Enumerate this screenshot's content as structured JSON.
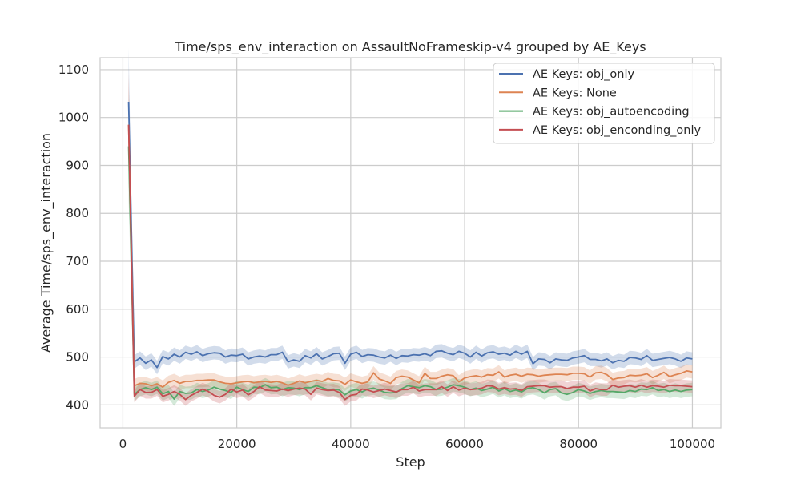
{
  "chart_data": {
    "type": "line",
    "title": "Time/sps_env_interaction on AssaultNoFrameskip-v4 grouped by AE_Keys",
    "xlabel": "Step",
    "ylabel": "Average Time/sps_env_interaction",
    "xlim": [
      -4000,
      105000
    ],
    "ylim": [
      352,
      1125
    ],
    "xticks": [
      0,
      20000,
      40000,
      60000,
      80000,
      100000
    ],
    "yticks": [
      400,
      500,
      600,
      700,
      800,
      900,
      1000,
      1100
    ],
    "grid": true,
    "legend_position": "top-right",
    "background": "#ffffff",
    "x": [
      1000,
      2000,
      3000,
      4000,
      5000,
      6000,
      7000,
      8000,
      9000,
      10000,
      11000,
      12000,
      13000,
      14000,
      15000,
      16000,
      17000,
      18000,
      19000,
      20000,
      21000,
      22000,
      23000,
      24000,
      25000,
      26000,
      27000,
      28000,
      29000,
      30000,
      31000,
      32000,
      33000,
      34000,
      35000,
      36000,
      37000,
      38000,
      39000,
      40000,
      41000,
      42000,
      43000,
      44000,
      45000,
      46000,
      47000,
      48000,
      49000,
      50000,
      51000,
      52000,
      53000,
      54000,
      55000,
      56000,
      57000,
      58000,
      59000,
      60000,
      61000,
      62000,
      63000,
      64000,
      65000,
      66000,
      67000,
      68000,
      69000,
      70000,
      71000,
      72000,
      73000,
      74000,
      75000,
      76000,
      77000,
      78000,
      79000,
      80000,
      81000,
      82000,
      83000,
      84000,
      85000,
      86000,
      87000,
      88000,
      89000,
      90000,
      91000,
      92000,
      93000,
      94000,
      95000,
      96000,
      97000,
      98000,
      99000,
      100000
    ],
    "series": [
      {
        "name": "AE Keys: obj_only",
        "color": "#4c72b0",
        "band": 14,
        "values": [
          1033,
          490,
          498,
          487,
          494,
          478,
          501,
          496,
          506,
          500,
          510,
          506,
          511,
          503,
          507,
          509,
          508,
          500,
          504,
          503,
          506,
          496,
          500,
          502,
          500,
          505,
          505,
          510,
          490,
          494,
          491,
          503,
          498,
          507,
          496,
          501,
          507,
          508,
          487,
          506,
          510,
          501,
          505,
          504,
          500,
          498,
          504,
          497,
          503,
          502,
          505,
          504,
          507,
          503,
          512,
          513,
          508,
          505,
          512,
          508,
          500,
          510,
          502,
          509,
          511,
          506,
          508,
          504,
          512,
          506,
          512,
          486,
          496,
          495,
          488,
          496,
          494,
          493,
          498,
          500,
          503,
          495,
          495,
          492,
          496,
          488,
          493,
          491,
          499,
          498,
          495,
          503,
          493,
          495,
          497,
          499,
          496,
          491,
          498,
          496
        ]
      },
      {
        "name": "AE Keys: None",
        "color": "#dd8452",
        "band": 14,
        "values": [
          985,
          440,
          445,
          444,
          440,
          444,
          437,
          447,
          451,
          445,
          449,
          449,
          451,
          451,
          452,
          452,
          448,
          445,
          444,
          446,
          448,
          449,
          446,
          448,
          449,
          447,
          449,
          446,
          441,
          445,
          450,
          446,
          449,
          451,
          449,
          455,
          451,
          450,
          443,
          452,
          448,
          445,
          448,
          467,
          454,
          450,
          445,
          457,
          460,
          458,
          452,
          446,
          466,
          455,
          455,
          460,
          463,
          461,
          448,
          456,
          459,
          461,
          458,
          463,
          462,
          469,
          458,
          462,
          464,
          460,
          464,
          463,
          460,
          462,
          463,
          464,
          464,
          463,
          466,
          466,
          465,
          458,
          467,
          468,
          463,
          453,
          456,
          457,
          462,
          461,
          462,
          465,
          457,
          462,
          468,
          459,
          463,
          466,
          471,
          469
        ]
      },
      {
        "name": "AE Keys: obj_autoencoding",
        "color": "#55a868",
        "band": 14,
        "values": [
          940,
          422,
          432,
          436,
          432,
          437,
          423,
          428,
          412,
          428,
          424,
          425,
          432,
          428,
          431,
          437,
          433,
          430,
          426,
          437,
          432,
          428,
          437,
          436,
          442,
          436,
          437,
          432,
          436,
          435,
          432,
          436,
          436,
          440,
          436,
          432,
          433,
          431,
          421,
          429,
          432,
          427,
          433,
          435,
          431,
          426,
          425,
          426,
          434,
          440,
          438,
          436,
          440,
          438,
          432,
          433,
          437,
          442,
          440,
          437,
          432,
          435,
          430,
          433,
          437,
          429,
          434,
          428,
          431,
          427,
          434,
          436,
          432,
          425,
          432,
          434,
          425,
          422,
          426,
          432,
          429,
          424,
          428,
          430,
          428,
          428,
          427,
          426,
          430,
          428,
          433,
          432,
          436,
          430,
          432,
          428,
          431,
          428,
          431,
          432
        ]
      },
      {
        "name": "AE Keys: obj_enconding_only",
        "color": "#c44e52",
        "band": 13,
        "values": [
          985,
          418,
          432,
          426,
          426,
          432,
          418,
          422,
          428,
          422,
          411,
          420,
          426,
          433,
          428,
          420,
          416,
          422,
          433,
          427,
          431,
          421,
          428,
          438,
          431,
          430,
          429,
          433,
          430,
          433,
          435,
          433,
          422,
          435,
          432,
          430,
          431,
          426,
          411,
          420,
          422,
          433,
          431,
          427,
          430,
          433,
          430,
          427,
          432,
          432,
          437,
          429,
          432,
          432,
          432,
          438,
          430,
          438,
          431,
          435,
          432,
          433,
          435,
          440,
          439,
          433,
          436,
          433,
          434,
          430,
          438,
          439,
          440,
          440,
          437,
          438,
          438,
          434,
          437,
          437,
          439,
          429,
          434,
          432,
          432,
          441,
          437,
          439,
          440,
          437,
          441,
          437,
          440,
          439,
          437,
          441,
          440,
          440,
          439,
          438
        ]
      }
    ]
  }
}
